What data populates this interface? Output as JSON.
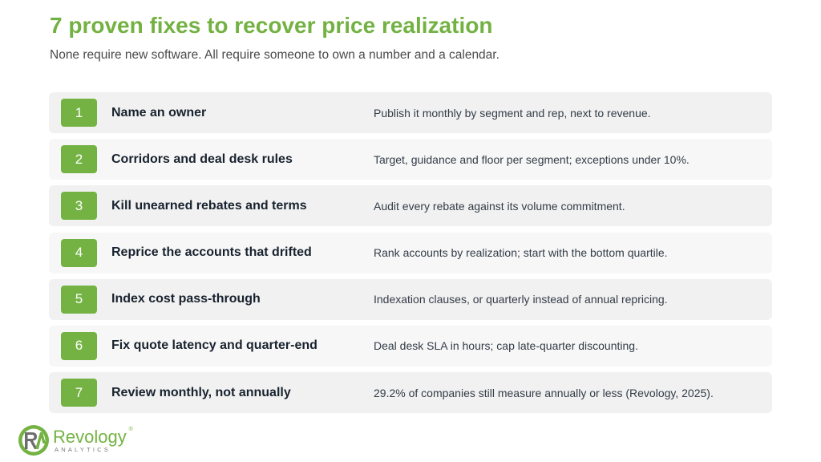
{
  "header": {
    "title": "7 proven fixes to recover price realization",
    "subtitle": "None require new software. All require someone to own a number and a calendar."
  },
  "fixes": [
    {
      "number": "1",
      "title": "Name an owner",
      "detail": "Publish it monthly by segment and rep, next to revenue."
    },
    {
      "number": "2",
      "title": "Corridors and deal desk rules",
      "detail": "Target, guidance and floor per segment; exceptions under 10%."
    },
    {
      "number": "3",
      "title": "Kill unearned rebates and terms",
      "detail": "Audit every rebate against its volume commitment."
    },
    {
      "number": "4",
      "title": "Reprice the accounts that drifted",
      "detail": "Rank accounts by realization; start with the bottom quartile."
    },
    {
      "number": "5",
      "title": "Index cost pass-through",
      "detail": "Indexation clauses, or quarterly instead of annual repricing."
    },
    {
      "number": "6",
      "title": "Fix quote latency and quarter-end",
      "detail": "Deal desk SLA in hours; cap late-quarter discounting."
    },
    {
      "number": "7",
      "title": "Review monthly, not annually",
      "detail": "29.2% of companies still measure annually or less (Revology, 2025)."
    }
  ],
  "logo": {
    "mark": "RA",
    "name": "Revology",
    "registered": "®",
    "tagline": "ANALYTICS"
  },
  "colors": {
    "accent": "#74b343",
    "title": "#73b242",
    "row_bg": "#f1f1f1",
    "logo_gray": "#7a7a7a"
  }
}
